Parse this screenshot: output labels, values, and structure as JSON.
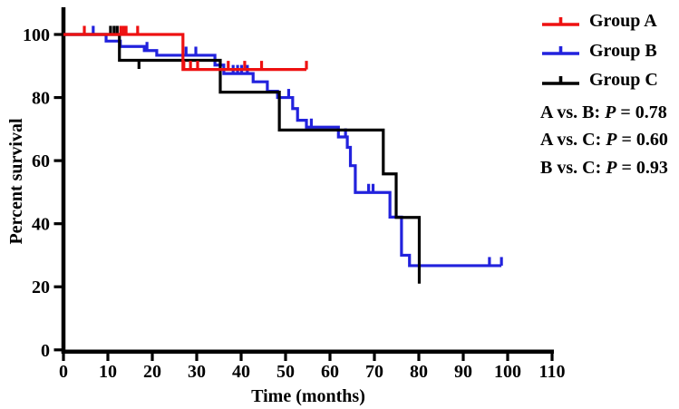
{
  "figure": {
    "background": "#ffffff",
    "axis_color": "#000000"
  },
  "chart_data": {
    "type": "line",
    "subtype": "kaplan_meier_step",
    "title": "",
    "xlabel": "Time (months)",
    "ylabel": "Percent survival",
    "xlim": [
      0,
      110
    ],
    "ylim": [
      0,
      100
    ],
    "xticks": [
      0,
      10,
      20,
      30,
      40,
      50,
      60,
      70,
      80,
      90,
      100,
      110
    ],
    "yticks": [
      0,
      20,
      40,
      60,
      80,
      100
    ],
    "grid": "off",
    "legend_position": "top-right-outside",
    "series": [
      {
        "name": "Group A",
        "color": "#ee1111",
        "start": [
          0,
          100
        ],
        "drops": [
          [
            26.9,
            88.9
          ]
        ],
        "end_time": 54.7,
        "censors": [
          [
            4.7,
            100
          ],
          [
            12.9,
            100
          ],
          [
            13.5,
            100
          ],
          [
            14.1,
            100
          ],
          [
            16.7,
            100
          ],
          [
            27.1,
            88.9
          ],
          [
            28.6,
            88.9
          ],
          [
            30.2,
            88.9
          ],
          [
            37.1,
            88.9
          ],
          [
            40.8,
            88.9
          ],
          [
            44.6,
            88.9
          ],
          [
            54.7,
            88.9
          ]
        ]
      },
      {
        "name": "Group B",
        "color": "#2222dd",
        "start": [
          0,
          100
        ],
        "drops": [
          [
            9.6,
            97.9
          ],
          [
            12.8,
            96.2
          ],
          [
            18.2,
            94.9
          ],
          [
            21,
            93.4
          ],
          [
            34.1,
            90.3
          ],
          [
            36.1,
            87.6
          ],
          [
            42.7,
            85
          ],
          [
            45.9,
            82
          ],
          [
            48.2,
            80
          ],
          [
            51.6,
            76.5
          ],
          [
            52.7,
            72.8
          ],
          [
            54.7,
            70.6
          ],
          [
            61.9,
            67.5
          ],
          [
            63.9,
            64.2
          ],
          [
            64.6,
            58.4
          ],
          [
            65.7,
            49.9
          ],
          [
            73.5,
            42.1
          ],
          [
            76.1,
            30
          ],
          [
            77.9,
            26.7
          ]
        ],
        "end_time": 98.6,
        "censors": [
          [
            6.7,
            100
          ],
          [
            18.8,
            94.9
          ],
          [
            27.6,
            93.4
          ],
          [
            29.8,
            93.4
          ],
          [
            38.2,
            87.6
          ],
          [
            39.2,
            87.6
          ],
          [
            40.1,
            87.6
          ],
          [
            41.4,
            87.6
          ],
          [
            50.7,
            80
          ],
          [
            55.8,
            70.6
          ],
          [
            63.5,
            67.5
          ],
          [
            68.7,
            49.9
          ],
          [
            69.7,
            49.9
          ],
          [
            95.9,
            26.7
          ],
          [
            98.6,
            26.7
          ]
        ]
      },
      {
        "name": "Group C",
        "color": "#000000",
        "start": [
          0,
          100
        ],
        "drops": [
          [
            12.6,
            91.8
          ],
          [
            35.3,
            81.7
          ],
          [
            48.6,
            69.7
          ],
          [
            72,
            55.8
          ],
          [
            74.9,
            42
          ],
          [
            80.1,
            21
          ]
        ],
        "end_time": 80.1,
        "censors": [
          [
            10.6,
            100
          ],
          [
            11.4,
            100
          ],
          [
            12.1,
            100
          ],
          [
            17,
            91.8,
            "down"
          ]
        ]
      }
    ],
    "annotations": [
      {
        "pair": "A vs. B: ",
        "p": "P",
        "value": " = 0.78"
      },
      {
        "pair": "A vs. C: ",
        "p": "P",
        "value": " = 0.60"
      },
      {
        "pair": "B vs. C: ",
        "p": "P",
        "value": " = 0.93"
      }
    ]
  }
}
